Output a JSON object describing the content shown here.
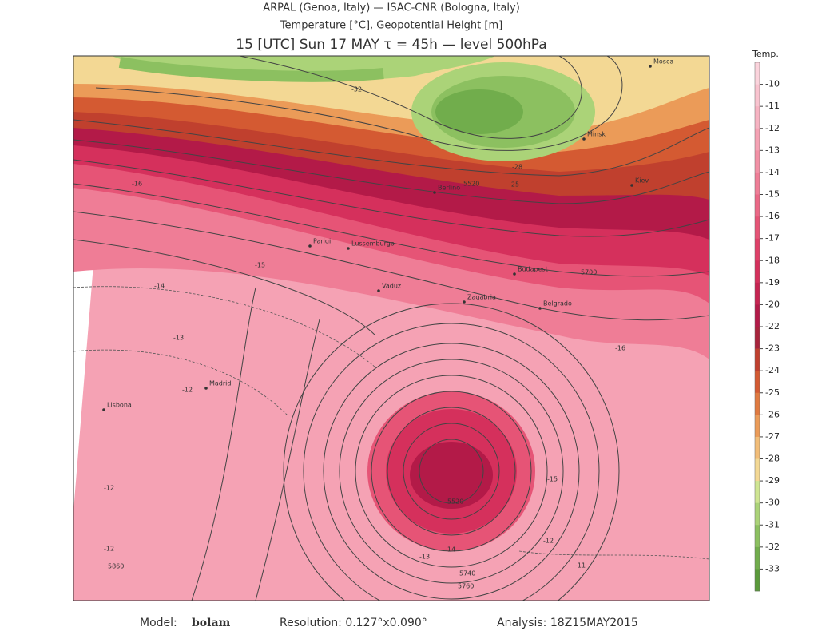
{
  "header": {
    "line1": "ARPAL (Genoa, Italy)  —  ISAC-CNR (Bologna, Italy)",
    "line2": "Temperature [°C], Geopotential Height [m]",
    "line3": "15 [UTC] Sun 17 MAY   τ = 45h   —   level 500hPa"
  },
  "colorbar": {
    "title": "Temp.",
    "levels": [
      -10,
      -11,
      -12,
      -13,
      -14,
      -15,
      -16,
      -17,
      -18,
      -19,
      -20,
      -22,
      -23,
      -24,
      -25,
      -26,
      -27,
      -28,
      -29,
      -30,
      -31,
      -32,
      -33
    ],
    "colors": [
      "#fbd3dc",
      "#f9c3cf",
      "#f7b3c2",
      "#f5a2b4",
      "#f290a5",
      "#ef7d96",
      "#eb6886",
      "#e65476",
      "#df4068",
      "#d5305c",
      "#c62451",
      "#b31a48",
      "#a8243c",
      "#c0402e",
      "#d45a32",
      "#e07a40",
      "#eb9b58",
      "#f2bd78",
      "#f3d894",
      "#cfe592",
      "#abd378",
      "#8cc060",
      "#71ad4c",
      "#5a9a3a"
    ]
  },
  "map_labels": [
    "Mosca",
    "Minsk",
    "Kiev",
    "Berlino",
    "Parigi",
    "Lussemburgo",
    "Vaduz",
    "Zagabria",
    "Budapest",
    "Belgrado",
    "Madrid",
    "Lisbona",
    "5520",
    "5700",
    "5740",
    "5760",
    "5860",
    "5520",
    "-32",
    "-28",
    "-25",
    "-16",
    "-15",
    "-14",
    "-13",
    "-12",
    "-12",
    "-12",
    "-13",
    "-14",
    "-15",
    "-12",
    "-16",
    "-11"
  ],
  "footer": {
    "model_label": "Model:",
    "model": "bolam",
    "resolution": "Resolution: 0.127°x0.090°",
    "analysis": "Analysis: 18Z15MAY2015"
  }
}
